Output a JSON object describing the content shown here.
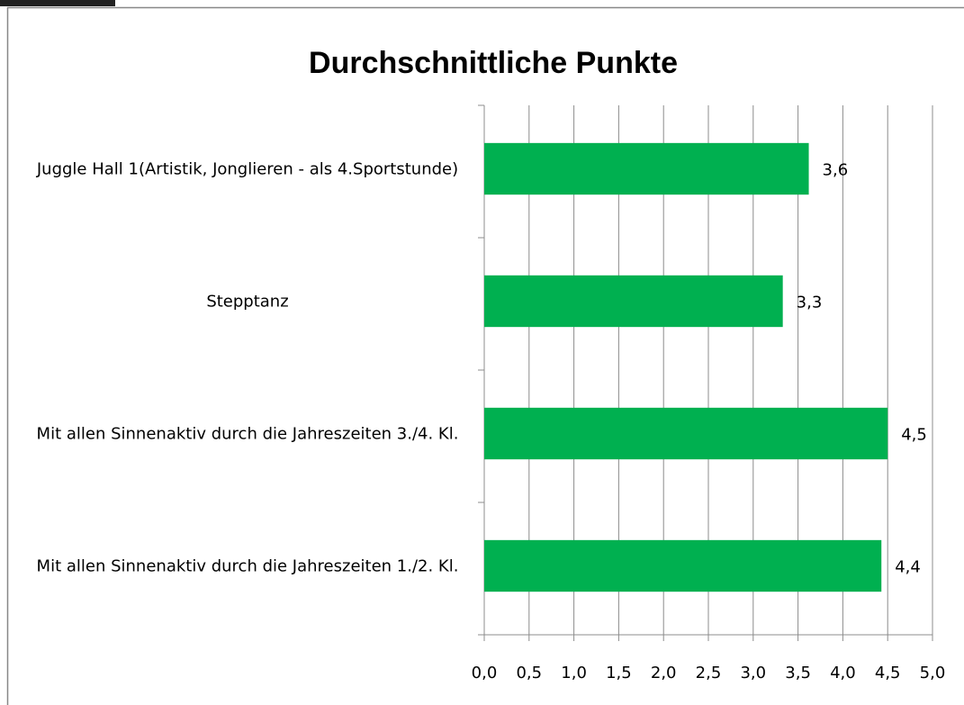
{
  "chart_data": {
    "type": "bar",
    "orientation": "horizontal",
    "title": "Durchschnittliche Punkte",
    "categories": [
      "Juggle Hall 1(Artistik, Jonglieren - als 4.Sportstunde)",
      "Stepptanz",
      "Mit allen Sinnenaktiv durch die Jahreszeiten 3./4. Kl.",
      "Mit allen Sinnenaktiv durch die Jahreszeiten 1./2. Kl."
    ],
    "values": [
      3.62,
      3.33,
      4.5,
      4.43
    ],
    "value_labels": [
      "3,6",
      "3,3",
      "4,5",
      "4,4"
    ],
    "color": "#00b050",
    "xlim": [
      0,
      5
    ],
    "xticks": [
      {
        "value": 0,
        "label": "0,0"
      },
      {
        "value": 0.5,
        "label": "0,5"
      },
      {
        "value": 1,
        "label": "1,0"
      },
      {
        "value": 1.5,
        "label": "1,5"
      },
      {
        "value": 2,
        "label": "2,0"
      },
      {
        "value": 2.5,
        "label": "2,5"
      },
      {
        "value": 3,
        "label": "3,0"
      },
      {
        "value": 3.5,
        "label": "3,5"
      },
      {
        "value": 4,
        "label": "4,0"
      },
      {
        "value": 4.5,
        "label": "4,5"
      },
      {
        "value": 5,
        "label": "5,0"
      }
    ],
    "grid": true
  }
}
